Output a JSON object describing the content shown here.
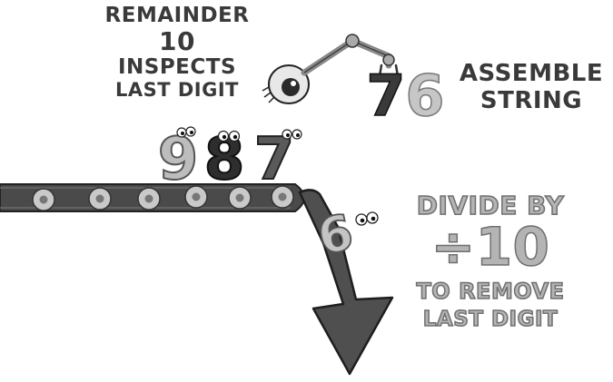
{
  "labels": {
    "remainder_line1": "REMAINDER",
    "remainder_line2": "10",
    "remainder_line3": "INSPECTS",
    "remainder_line4": "LAST DIGIT",
    "assemble_line1": "ASSEMBLE",
    "assemble_line2": "STRING",
    "divide_line1": "DIVIDE BY",
    "divide_line2": "÷10",
    "divide_line3": "TO REMOVE",
    "divide_line4": "LAST DIGIT"
  },
  "conveyor_digits": [
    "9",
    "8",
    "7"
  ],
  "assembled_digits": [
    "7",
    "6"
  ],
  "falling_digit": "6",
  "colors": {
    "dark": "#3a3a3a",
    "mid": "#5a5a5a",
    "light": "#b4b4b4",
    "belt": "#4a4a4a",
    "outline": "#222222"
  },
  "icons": [
    "robot-arm-icon",
    "eyeball-icon",
    "conveyor-belt-icon",
    "down-arrow-icon"
  ]
}
